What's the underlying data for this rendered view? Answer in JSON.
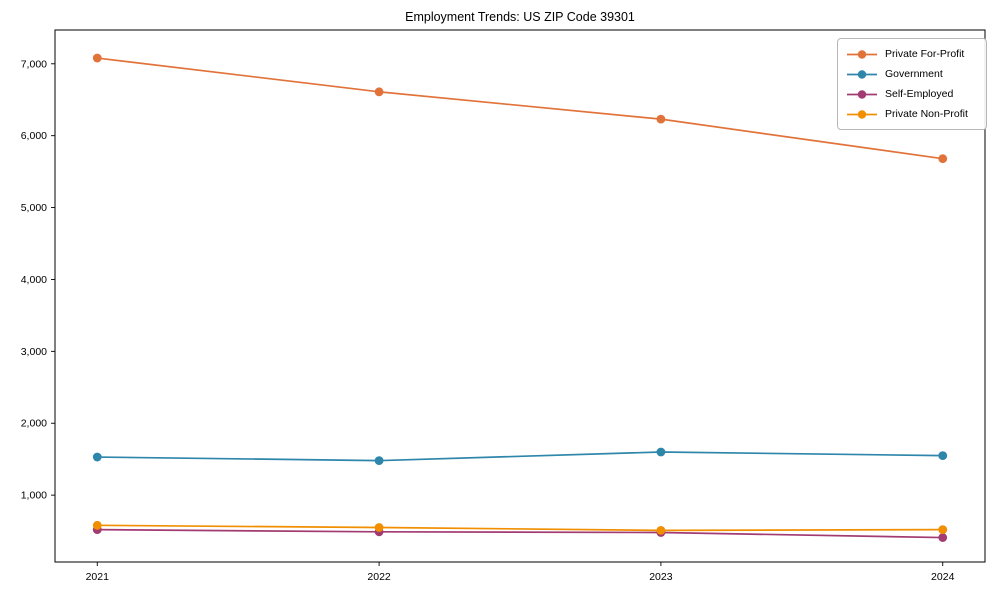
{
  "chart_data": {
    "type": "line",
    "title": "Employment Trends: US ZIP Code 39301",
    "x": [
      2021,
      2022,
      2023,
      2024
    ],
    "x_tick_labels": [
      "2021",
      "2022",
      "2023",
      "2024"
    ],
    "xlim": [
      2020.85,
      2024.15
    ],
    "ylim": [
      70,
      7470
    ],
    "y_ticks": [
      1000,
      2000,
      3000,
      4000,
      5000,
      6000,
      7000
    ],
    "y_tick_labels": [
      "1,000",
      "2,000",
      "3,000",
      "4,000",
      "5,000",
      "6,000",
      "7,000"
    ],
    "grid": false,
    "marker": "circle",
    "legend_position": "upper right",
    "series": [
      {
        "name": "Private For-Profit",
        "color": "#E1733A",
        "values": [
          7080,
          6610,
          6230,
          5680
        ]
      },
      {
        "name": "Government",
        "color": "#2E86AB",
        "values": [
          1530,
          1480,
          1600,
          1550
        ]
      },
      {
        "name": "Self-Employed",
        "color": "#A23B72",
        "values": [
          520,
          490,
          480,
          410
        ]
      },
      {
        "name": "Private Non-Profit",
        "color": "#F18F01",
        "values": [
          580,
          550,
          510,
          520
        ]
      }
    ],
    "xlabel": "",
    "ylabel": ""
  }
}
